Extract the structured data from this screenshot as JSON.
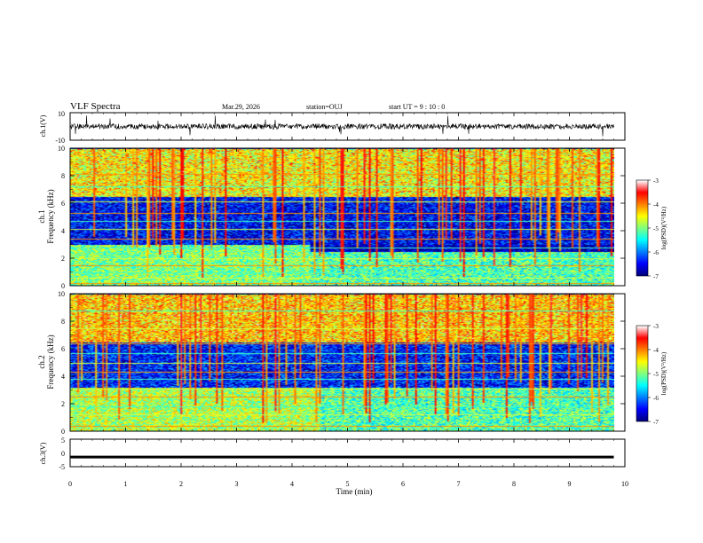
{
  "header": {
    "title": "VLF Spectra",
    "date": "Mar.29, 2026",
    "station": "station=OUJ",
    "start": "start  UT =   9 : 10 : 0"
  },
  "colors": {
    "cmap": [
      "#00007f",
      "#0000ff",
      "#0080ff",
      "#00ffff",
      "#80ff80",
      "#ffff00",
      "#ff8000",
      "#ff0000",
      "#ffffff"
    ],
    "frame": "#000000",
    "background": "#ffffff"
  },
  "chart_data": [
    {
      "type": "line",
      "name": "ch1-waveform",
      "ylabel": "ch.1(V)",
      "ylim": [
        -10,
        10
      ],
      "yticks": [
        "10",
        "-10"
      ],
      "mean": 0,
      "amplitude": 2,
      "x_range_min": [
        0,
        9.8
      ]
    },
    {
      "type": "heatmap",
      "name": "ch1-spectrogram",
      "ylabel": "ch.1",
      "ylabel2": "Frequency (kHz)",
      "ylim": [
        0,
        10
      ],
      "yticks": [
        "0",
        "2",
        "4",
        "6",
        "8",
        "10"
      ],
      "data_extent_min": 9.8,
      "colorbar": {
        "label": "log(PSD)(V²/Hz)",
        "ticks": [
          "-3",
          "-4",
          "-5",
          "-6",
          "-7"
        ],
        "range": [
          -7,
          -3
        ]
      },
      "regions": [
        {
          "t": [
            0,
            4.3
          ],
          "f": [
            0,
            3.0
          ],
          "level": -5.0
        },
        {
          "t": [
            4.3,
            9.8
          ],
          "f": [
            0,
            2.5
          ],
          "level": -5.2
        },
        {
          "t": [
            0,
            9.8
          ],
          "f": [
            3.0,
            6.5
          ],
          "level": -6.5
        },
        {
          "t": [
            0,
            9.8
          ],
          "f": [
            6.5,
            10
          ],
          "level": -4.6
        }
      ],
      "tones_kHz": [
        0.2,
        0.6,
        1.0,
        1.5,
        2.0,
        2.8,
        3.4,
        4.1,
        4.7,
        5.3,
        6.1,
        7.2,
        8.1
      ]
    },
    {
      "type": "heatmap",
      "name": "ch2-spectrogram",
      "ylabel": "ch.2",
      "ylabel2": "Frequency (kHz)",
      "ylim": [
        0,
        10
      ],
      "yticks": [
        "0",
        "2",
        "4",
        "6",
        "8",
        "10"
      ],
      "data_extent_min": 9.8,
      "colorbar": {
        "label": "log(PSD)(V²/Hz)",
        "ticks": [
          "-3",
          "-4",
          "-5",
          "-6",
          "-7"
        ],
        "range": [
          -7,
          -3
        ]
      },
      "regions": [
        {
          "t": [
            0,
            4.5
          ],
          "f": [
            0,
            3.2
          ],
          "level": -4.8
        },
        {
          "t": [
            4.5,
            9.8
          ],
          "f": [
            0,
            3.6
          ],
          "level": -5.2
        },
        {
          "t": [
            0,
            9.8
          ],
          "f": [
            3.2,
            6.5
          ],
          "level": -6.4
        },
        {
          "t": [
            0,
            9.8
          ],
          "f": [
            6.5,
            10
          ],
          "level": -4.4
        }
      ],
      "tones_kHz": [
        0.4,
        1.2,
        1.8,
        2.5,
        3.1,
        3.8,
        4.3,
        5.0,
        5.7,
        6.4,
        7.5,
        8.8
      ]
    },
    {
      "type": "line",
      "name": "ch3-waveform",
      "ylabel": "ch.3(V)",
      "ylim": [
        -5,
        5
      ],
      "yticks": [
        "5",
        "0",
        "-5"
      ],
      "level": -1.5,
      "x_range_min": [
        0,
        9.8
      ]
    }
  ],
  "xaxis": {
    "label": "Time (min)",
    "xlim": [
      0,
      10
    ],
    "ticks": [
      "0",
      "1",
      "2",
      "3",
      "4",
      "5",
      "6",
      "7",
      "8",
      "9",
      "10"
    ]
  }
}
